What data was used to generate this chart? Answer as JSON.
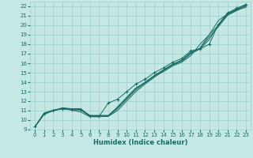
{
  "xlabel": "Humidex (Indice chaleur)",
  "xlim": [
    -0.5,
    23.5
  ],
  "ylim": [
    9,
    22.5
  ],
  "xticks": [
    0,
    1,
    2,
    3,
    4,
    5,
    6,
    7,
    8,
    9,
    10,
    11,
    12,
    13,
    14,
    15,
    16,
    17,
    18,
    19,
    20,
    21,
    22,
    23
  ],
  "yticks": [
    9,
    10,
    11,
    12,
    13,
    14,
    15,
    16,
    17,
    18,
    19,
    20,
    21,
    22
  ],
  "bg_color": "#c5e8e5",
  "grid_color": "#9ecfcb",
  "line_color": "#1a6b65",
  "line1_y": [
    9.3,
    10.7,
    11.0,
    11.2,
    11.1,
    11.1,
    10.4,
    10.4,
    11.8,
    12.2,
    13.0,
    13.8,
    14.3,
    15.0,
    15.5,
    16.1,
    16.5,
    17.3,
    17.5,
    18.0,
    20.1,
    21.3,
    21.8,
    22.2
  ],
  "line2_y": [
    9.3,
    10.7,
    11.05,
    11.2,
    11.05,
    10.85,
    10.35,
    10.35,
    10.4,
    11.0,
    12.0,
    13.0,
    13.8,
    14.5,
    15.2,
    15.8,
    16.2,
    17.0,
    17.5,
    18.5,
    20.0,
    21.2,
    21.7,
    22.1
  ],
  "line3_y": [
    9.3,
    10.65,
    11.0,
    11.2,
    11.1,
    11.05,
    10.45,
    10.45,
    10.45,
    11.4,
    12.4,
    13.4,
    13.95,
    14.65,
    15.25,
    15.85,
    16.35,
    17.15,
    17.55,
    18.75,
    19.85,
    21.05,
    21.55,
    22.0
  ],
  "line4_y": [
    9.3,
    10.6,
    11.0,
    11.3,
    11.2,
    11.2,
    10.4,
    10.4,
    10.4,
    11.2,
    12.2,
    13.2,
    13.9,
    14.6,
    15.1,
    15.7,
    16.1,
    16.8,
    18.0,
    19.0,
    20.0,
    21.1,
    21.6,
    21.9
  ],
  "line5_y": [
    9.3,
    10.75,
    11.05,
    11.25,
    11.15,
    11.15,
    10.5,
    10.5,
    10.5,
    11.3,
    12.3,
    13.3,
    14.0,
    14.7,
    15.3,
    15.9,
    16.3,
    17.1,
    17.6,
    19.0,
    20.5,
    21.2,
    21.65,
    22.15
  ],
  "x": [
    0,
    1,
    2,
    3,
    4,
    5,
    6,
    7,
    8,
    9,
    10,
    11,
    12,
    13,
    14,
    15,
    16,
    17,
    18,
    19,
    20,
    21,
    22,
    23
  ]
}
